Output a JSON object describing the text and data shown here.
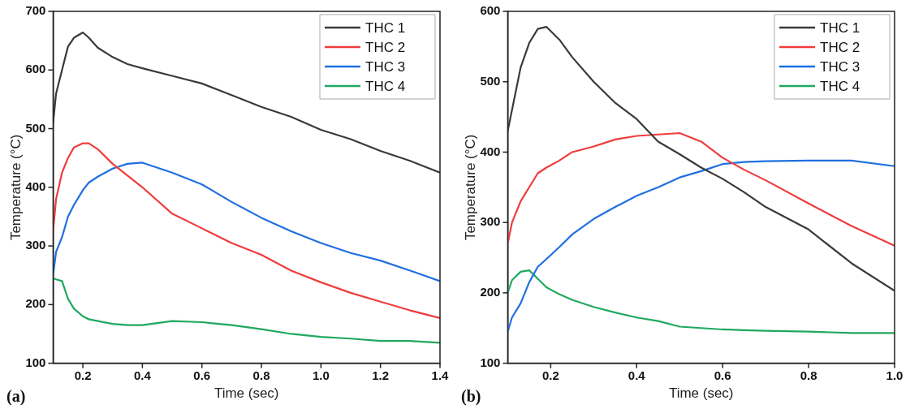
{
  "chart_data": [
    {
      "type": "line",
      "xlabel": "Time (sec)",
      "ylabel": "Temperature (°C)",
      "annotations": [
        "(a)"
      ],
      "legend": "top right",
      "grid": false,
      "xlim": [
        0.1,
        1.4
      ],
      "xticks": [
        0.2,
        0.4,
        0.6,
        0.8,
        {
          "value": 1.0,
          "label": "1.0"
        },
        1.2,
        1.4
      ],
      "ylim": [
        100,
        700
      ],
      "yticks": [
        100,
        200,
        300,
        400,
        500,
        600,
        700
      ],
      "x": [
        0.1,
        0.11,
        0.13,
        0.15,
        0.17,
        0.2,
        0.22,
        0.25,
        0.3,
        0.35,
        0.4,
        0.5,
        0.6,
        0.7,
        0.8,
        0.9,
        1.0,
        1.1,
        1.2,
        1.3,
        1.4
      ],
      "series": [
        {
          "name": "THC 1",
          "color": "#3a3a3a",
          "values": [
            510,
            560,
            600,
            640,
            655,
            664,
            655,
            638,
            622,
            610,
            603,
            590,
            577,
            557,
            537,
            520,
            498,
            482,
            462,
            445,
            425
          ]
        },
        {
          "name": "THC 2",
          "color": "#f03c3c",
          "values": [
            325,
            380,
            425,
            450,
            468,
            475,
            475,
            465,
            440,
            420,
            400,
            355,
            330,
            305,
            285,
            258,
            238,
            220,
            205,
            190,
            177
          ]
        },
        {
          "name": "THC 3",
          "color": "#1f6fe0",
          "values": [
            250,
            290,
            315,
            350,
            370,
            395,
            408,
            418,
            432,
            440,
            442,
            425,
            405,
            375,
            348,
            325,
            305,
            288,
            275,
            258,
            240
          ]
        },
        {
          "name": "THC 4",
          "color": "#20a860",
          "values": [
            245,
            243,
            240,
            210,
            193,
            180,
            175,
            172,
            167,
            165,
            165,
            172,
            170,
            165,
            158,
            150,
            145,
            142,
            138,
            138,
            135
          ]
        }
      ]
    },
    {
      "type": "line",
      "xlabel": "Time (sec)",
      "ylabel": "Temperature (°C)",
      "annotations": [
        "(b)"
      ],
      "legend": "top right",
      "grid": false,
      "xlim": [
        0.1,
        1.0
      ],
      "xticks": [
        0.2,
        0.4,
        0.6,
        0.8,
        {
          "value": 1.0,
          "label": "1.0"
        }
      ],
      "ylim": [
        100,
        600
      ],
      "yticks": [
        100,
        200,
        300,
        400,
        500,
        600
      ],
      "x": [
        0.1,
        0.11,
        0.13,
        0.15,
        0.17,
        0.19,
        0.22,
        0.25,
        0.3,
        0.35,
        0.4,
        0.45,
        0.5,
        0.55,
        0.6,
        0.65,
        0.7,
        0.8,
        0.9,
        1.0
      ],
      "series": [
        {
          "name": "THC 1",
          "color": "#3a3a3a",
          "values": [
            430,
            460,
            520,
            555,
            575,
            578,
            560,
            535,
            500,
            470,
            447,
            415,
            397,
            378,
            362,
            343,
            322,
            290,
            242,
            203
          ]
        },
        {
          "name": "THC 2",
          "color": "#f03c3c",
          "values": [
            270,
            300,
            330,
            350,
            370,
            378,
            388,
            400,
            408,
            418,
            423,
            425,
            427,
            415,
            392,
            375,
            360,
            327,
            295,
            267
          ]
        },
        {
          "name": "THC 3",
          "color": "#1f6fe0",
          "values": [
            145,
            165,
            185,
            215,
            237,
            248,
            265,
            283,
            305,
            322,
            338,
            350,
            364,
            373,
            383,
            386,
            387,
            388,
            388,
            380
          ]
        },
        {
          "name": "THC 4",
          "color": "#20a860",
          "values": [
            200,
            218,
            230,
            232,
            220,
            208,
            198,
            190,
            180,
            172,
            165,
            160,
            152,
            150,
            148,
            147,
            146,
            145,
            143,
            143
          ]
        }
      ]
    }
  ]
}
